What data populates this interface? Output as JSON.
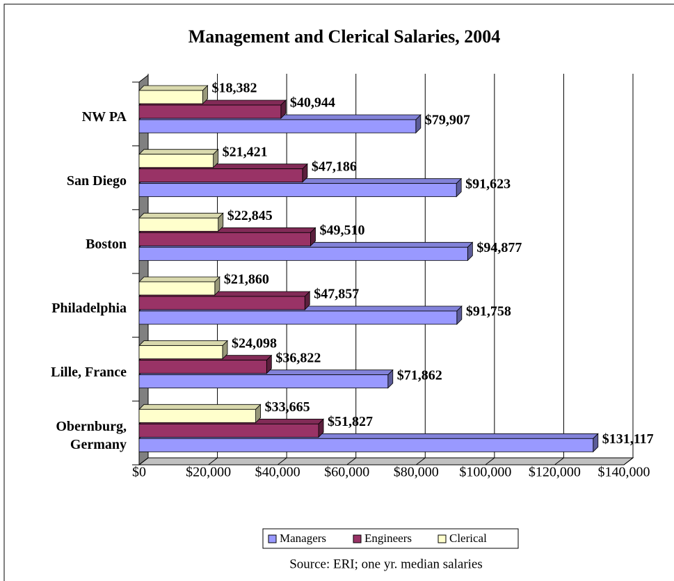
{
  "chart_data": {
    "type": "bar3d_horizontal",
    "title": "Management and Clerical Salaries, 2004",
    "source": "Source: ERI; one yr. median salaries",
    "categories": [
      "NW PA",
      "San Diego",
      "Boston",
      "Philadelphia",
      "Lille, France",
      "Obernburg, Germany"
    ],
    "series": [
      {
        "name": "Managers",
        "color": "#9999ff",
        "values": [
          79907,
          91623,
          94877,
          91758,
          71862,
          131117
        ],
        "value_labels": [
          "$79,907",
          "$91,623",
          "$94,877",
          "$91,758",
          "$71,862",
          "$131,117"
        ]
      },
      {
        "name": "Engineers",
        "color": "#993366",
        "values": [
          40944,
          47186,
          49510,
          47857,
          36822,
          51827
        ],
        "value_labels": [
          "$40,944",
          "$47,186",
          "$49,510",
          "$47,857",
          "$36,822",
          "$51,827"
        ]
      },
      {
        "name": "Clerical",
        "color": "#ffffcc",
        "values": [
          18382,
          21421,
          22845,
          21860,
          24098,
          33665
        ],
        "value_labels": [
          "$18,382",
          "$21,421",
          "$22,845",
          "$21,860",
          "$24,098",
          "$33,665"
        ]
      }
    ],
    "xlim": [
      0,
      140000
    ],
    "xticks": [
      {
        "value": 0,
        "label": "$0"
      },
      {
        "value": 20000,
        "label": "$20,000"
      },
      {
        "value": 40000,
        "label": "$40,000"
      },
      {
        "value": 60000,
        "label": "$60,000"
      },
      {
        "value": 80000,
        "label": "$80,000"
      },
      {
        "value": 100000,
        "label": "$100,000"
      },
      {
        "value": 120000,
        "label": "$120,000"
      },
      {
        "value": 140000,
        "label": "$140,000"
      }
    ],
    "grid": true,
    "legend": "bottom"
  }
}
